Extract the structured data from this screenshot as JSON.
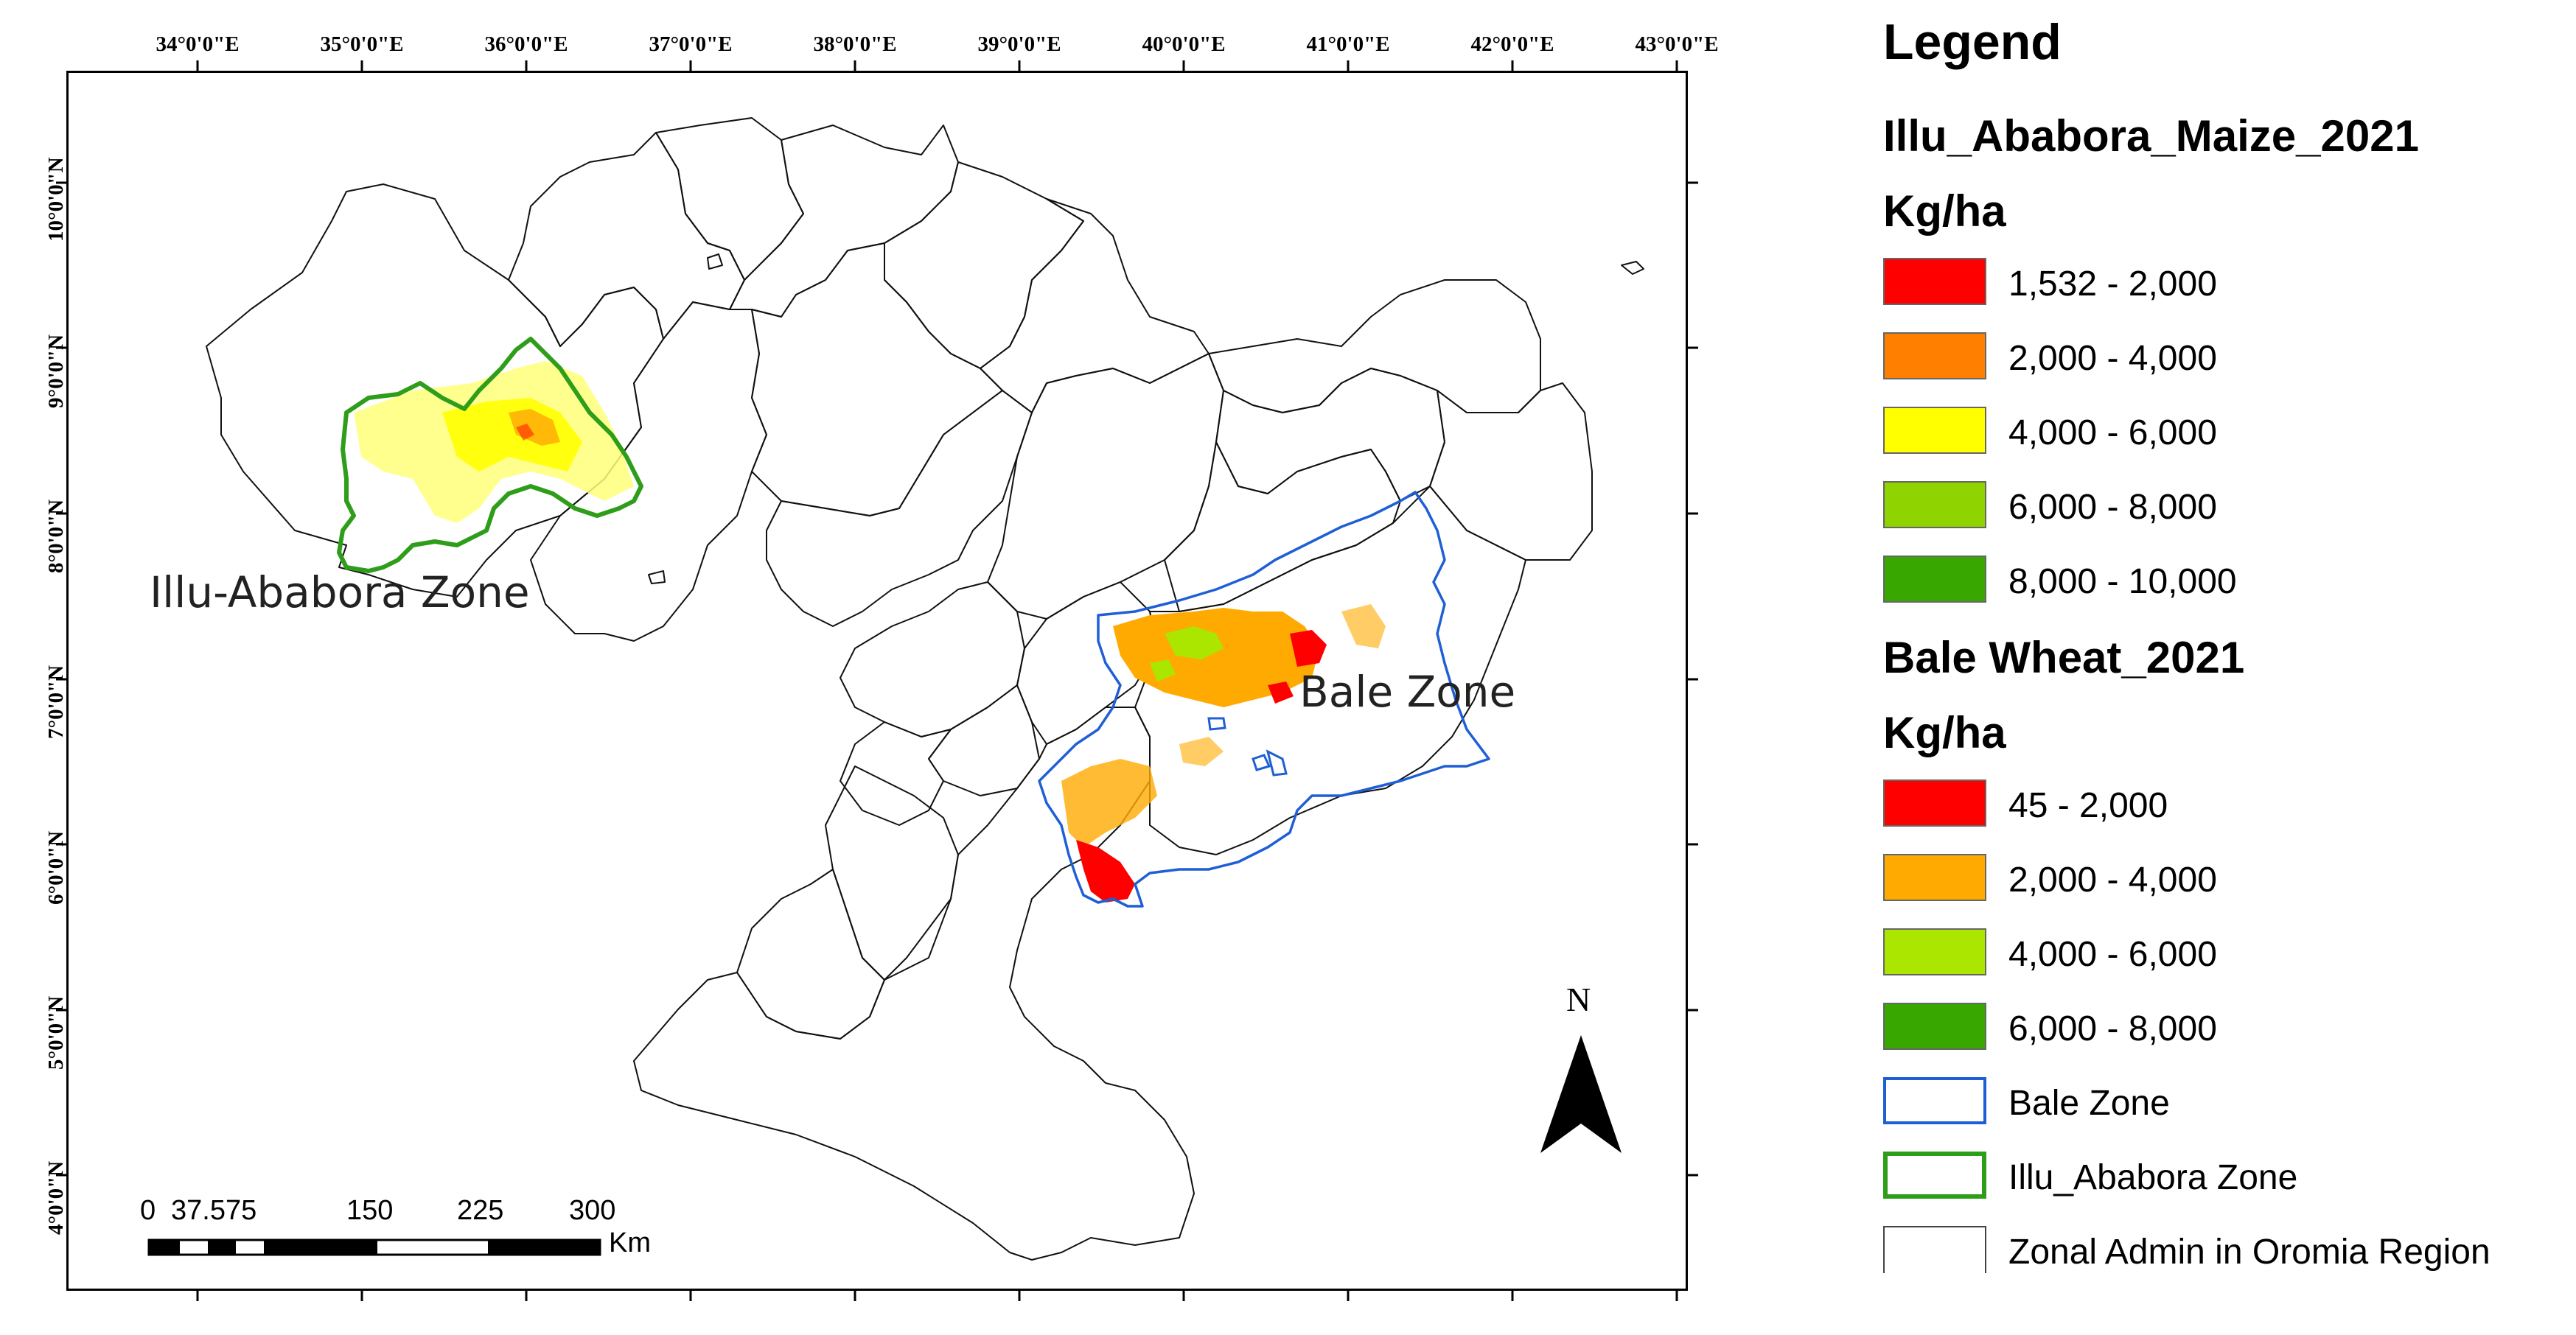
{
  "longitude_ticks": [
    "34°0'0\"E",
    "35°0'0\"E",
    "36°0'0\"E",
    "37°0'0\"E",
    "38°0'0\"E",
    "39°0'0\"E",
    "40°0'0\"E",
    "41°0'0\"E",
    "42°0'0\"E",
    "43°0'0\"E"
  ],
  "latitude_ticks": [
    "10°0'0\"N",
    "9°0'0\"N",
    "8°0'0\"N",
    "7°0'0\"N",
    "6°0'0\"N",
    "5°0'0\"N",
    "4°0'0\"N"
  ],
  "zone_labels": {
    "illu": "Illu-Ababora Zone",
    "bale": "Bale Zone"
  },
  "scale_bar": {
    "ticks": [
      "0",
      "37.575",
      "150",
      "225",
      "300"
    ],
    "unit": "Km"
  },
  "north_arrow": "N",
  "legend": {
    "title": "Legend",
    "maize_heading": "Illu_Ababora_Maize_2021",
    "maize_unit": "Kg/ha",
    "maize_classes": [
      {
        "label": "1,532 - 2,000",
        "color": "#ff0000"
      },
      {
        "label": "2,000 - 4,000",
        "color": "#ff7f00"
      },
      {
        "label": "4,000 - 6,000",
        "color": "#ffff00"
      },
      {
        "label": "6,000 - 8,000",
        "color": "#8fd400"
      },
      {
        "label": "8,000 - 10,000",
        "color": "#38a800"
      }
    ],
    "wheat_heading": "Bale Wheat_2021",
    "wheat_unit": "Kg/ha",
    "wheat_classes": [
      {
        "label": "45 - 2,000",
        "color": "#ff0000"
      },
      {
        "label": "2,000 - 4,000",
        "color": "#ffaa00"
      },
      {
        "label": "4,000 - 6,000",
        "color": "#aae600"
      },
      {
        "label": "6,000 - 8,000",
        "color": "#38a800"
      }
    ],
    "outline_classes": [
      {
        "label": "Bale Zone",
        "color": "#1f5fd6"
      },
      {
        "label": "Illu_Ababora Zone",
        "color": "#2e9e1a"
      },
      {
        "label": "Zonal Admin in Oromia Region",
        "color": "#444444"
      }
    ]
  }
}
